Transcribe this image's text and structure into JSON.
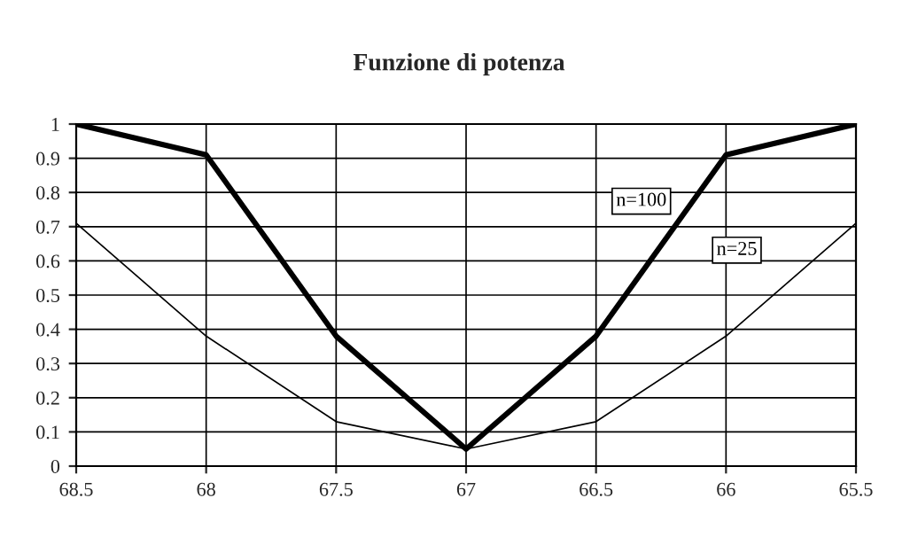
{
  "chart_data": {
    "type": "line",
    "title": "Funzione di potenza",
    "x": [
      68.5,
      68,
      67.5,
      67,
      66.5,
      66,
      65.5
    ],
    "series": [
      {
        "name": "n=100",
        "color": "#000000",
        "values": [
          1,
          0.91,
          0.38,
          0.05,
          0.38,
          0.91,
          1
        ]
      },
      {
        "name": "n=25",
        "color": "#000000",
        "values": [
          0.71,
          0.38,
          0.13,
          0.05,
          0.13,
          0.38,
          0.71
        ]
      }
    ],
    "xlim": [
      68.5,
      65.5
    ],
    "xticks": [
      68.5,
      68,
      67.5,
      67,
      66.5,
      66,
      65.5
    ],
    "ylim": [
      0,
      1
    ],
    "yticks": [
      0,
      0.1,
      0.2,
      0.3,
      0.4,
      0.5,
      0.6,
      0.7,
      0.8,
      0.9,
      1
    ],
    "grid": true,
    "marker": "none",
    "line_style": "solid"
  }
}
